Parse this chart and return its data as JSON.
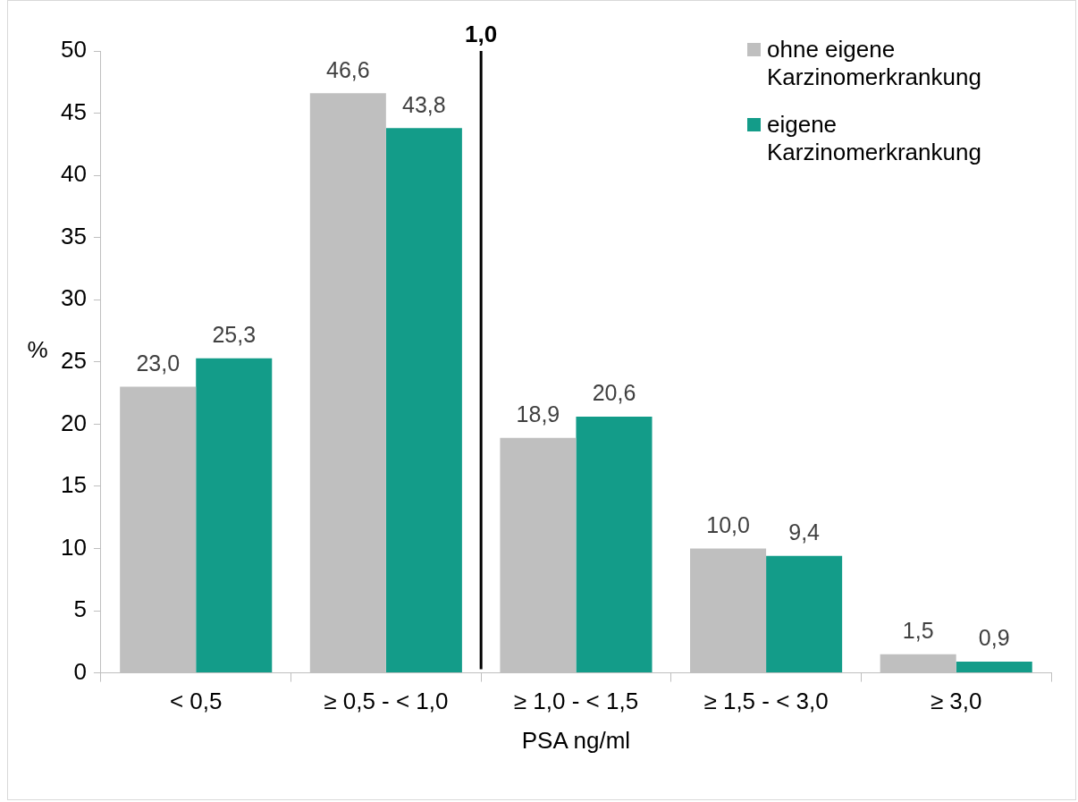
{
  "chart_data": {
    "type": "bar",
    "xlabel": "PSA ng/ml",
    "ylabel": "%",
    "categories": [
      "< 0,5",
      "≥ 0,5 - < 1,0",
      "≥ 1,0 - < 1,5",
      "≥ 1,5 - < 3,0",
      "≥ 3,0"
    ],
    "series": [
      {
        "name": "ohne eigene Karzinomerkrankung",
        "color": "#bfbfbf",
        "values": [
          23.0,
          46.6,
          18.9,
          10.0,
          1.5
        ],
        "value_labels": [
          "23,0",
          "46,6",
          "18,9",
          "10,0",
          "1,5"
        ]
      },
      {
        "name": "eigene Karzinomerkrankung",
        "color": "#139c89",
        "values": [
          25.3,
          43.8,
          20.6,
          9.4,
          0.9
        ],
        "value_labels": [
          "25,3",
          "43,8",
          "20,6",
          "9,4",
          "0,9"
        ]
      }
    ],
    "ylim": [
      0,
      50
    ],
    "yticks": [
      0,
      5,
      10,
      15,
      20,
      25,
      30,
      35,
      40,
      45,
      50
    ],
    "annotations": [
      "1,0"
    ],
    "legend": "top right"
  }
}
